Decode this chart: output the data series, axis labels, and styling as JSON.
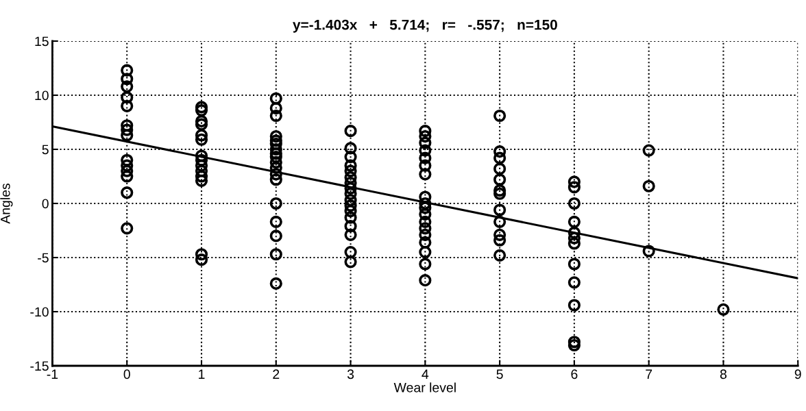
{
  "chart_data": {
    "type": "scatter",
    "title": "y=-1.403x   +   5.714;   r=   -.557;   n=150",
    "xlabel": "Wear level",
    "ylabel": "Angles",
    "xlim": [
      -1,
      9
    ],
    "ylim": [
      -15,
      15
    ],
    "xticks": [
      -1,
      0,
      1,
      2,
      3,
      4,
      5,
      6,
      7,
      8,
      9
    ],
    "yticks": [
      -15,
      -10,
      -5,
      0,
      5,
      10,
      15
    ],
    "grid": true,
    "series": [
      {
        "marker": "circle",
        "color": "#000000",
        "x": [
          0,
          0,
          0,
          0,
          0,
          0,
          0,
          0,
          0,
          0,
          0,
          0,
          0,
          0,
          1,
          1,
          1,
          1,
          1,
          1,
          1,
          1,
          1,
          1,
          1,
          1,
          1,
          1,
          2,
          2,
          2,
          2,
          2,
          2,
          2,
          2,
          2,
          2,
          2,
          2,
          2,
          2,
          2,
          2,
          2,
          2,
          3,
          3,
          3,
          3,
          3,
          3,
          3,
          3,
          3,
          3,
          3,
          3,
          3,
          3,
          3,
          3,
          3,
          4,
          4,
          4,
          4,
          4,
          4,
          4,
          4,
          4,
          4,
          4,
          4,
          4,
          4,
          4,
          4,
          4,
          4,
          5,
          5,
          5,
          5,
          5,
          5,
          5,
          5,
          5,
          5,
          5,
          5,
          6,
          6,
          6,
          6,
          6,
          6,
          6,
          6,
          6,
          6,
          6,
          6,
          7,
          7,
          7,
          8
        ],
        "values": [
          12.3,
          11.5,
          10.8,
          9.8,
          9,
          7.2,
          6.8,
          6.3,
          4,
          3.5,
          3,
          2.5,
          1,
          -2.3,
          8.9,
          8.6,
          7.6,
          7.3,
          6.3,
          5.9,
          4.4,
          4,
          3.5,
          3,
          2.5,
          2.1,
          -4.7,
          -5.2,
          9.7,
          8.8,
          8.1,
          6.2,
          5.8,
          5.5,
          5,
          4.6,
          4.3,
          3.8,
          3.3,
          2.7,
          2.2,
          0,
          -1.7,
          -3,
          -4.7,
          -7.4,
          6.7,
          5.1,
          4.3,
          3.5,
          3,
          2.4,
          1.9,
          1.4,
          0.9,
          0.3,
          -0.2,
          -0.7,
          -1.3,
          -2.1,
          -2.9,
          -4.5,
          -5.4,
          6.7,
          6.2,
          5.6,
          4.9,
          4.2,
          3.5,
          2.7,
          0.6,
          0,
          -0.4,
          -1,
          -1.7,
          -2.3,
          -2.9,
          -3.6,
          -4.5,
          -5.6,
          -7.1,
          8.1,
          4.8,
          4.2,
          3.2,
          2.2,
          1.2,
          0.9,
          -0.6,
          -1.7,
          -2.9,
          -3.4,
          -4.8,
          2,
          1.5,
          0,
          -1.7,
          -2.7,
          -3.2,
          -3.7,
          -5.6,
          -7.3,
          -9.4,
          -12.8,
          -13.1,
          4.9,
          1.6,
          -4.4,
          -9.8
        ]
      },
      {
        "type": "line",
        "marker": "none",
        "color": "#000000",
        "x": [
          -1,
          9
        ],
        "values": [
          7.12,
          -6.91
        ]
      }
    ]
  }
}
